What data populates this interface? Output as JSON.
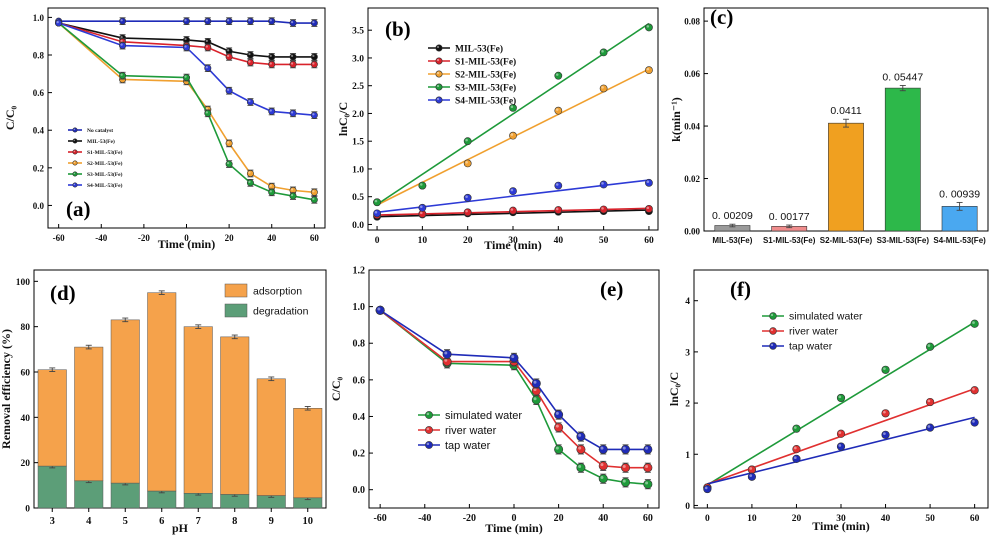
{
  "chart_data": [
    {
      "id": "a",
      "panel_label": "(a)",
      "type": "line",
      "xlabel": "Time (min)",
      "ylabel": "C/C₀",
      "xlim": [
        -65,
        65
      ],
      "ylim": [
        -0.12,
        1.05
      ],
      "xticks": [
        -60,
        -40,
        -20,
        0,
        20,
        40,
        60
      ],
      "yticks": [
        0.0,
        0.2,
        0.4,
        0.6,
        0.8,
        1.0
      ],
      "ytick_labels": [
        "0.0",
        "0.2",
        "0.4",
        "0.6",
        "0.8",
        "1.0"
      ],
      "legend_position": "lower-left",
      "x": [
        -60,
        -30,
        0,
        10,
        20,
        30,
        40,
        50,
        60
      ],
      "series": [
        {
          "name": "No catalyst",
          "color": "#1f2bb8",
          "values": [
            0.98,
            0.98,
            0.98,
            0.98,
            0.98,
            0.98,
            0.98,
            0.97,
            0.97
          ]
        },
        {
          "name": "MIL-53(Fe)",
          "color": "#111111",
          "values": [
            0.97,
            0.89,
            0.88,
            0.87,
            0.82,
            0.8,
            0.79,
            0.79,
            0.79
          ]
        },
        {
          "name": "S1-MIL-53(Fe)",
          "color": "#d9222b",
          "values": [
            0.97,
            0.87,
            0.85,
            0.84,
            0.79,
            0.76,
            0.75,
            0.75,
            0.75
          ]
        },
        {
          "name": "S2-MIL-53(Fe)",
          "color": "#f0a030",
          "values": [
            0.97,
            0.67,
            0.66,
            0.51,
            0.33,
            0.17,
            0.1,
            0.08,
            0.07
          ]
        },
        {
          "name": "S3-MIL-53(Fe)",
          "color": "#1e9a3a",
          "values": [
            0.97,
            0.69,
            0.68,
            0.49,
            0.22,
            0.12,
            0.07,
            0.05,
            0.03
          ]
        },
        {
          "name": "S4-MIL-53(Fe)",
          "color": "#2d3ad6",
          "values": [
            0.97,
            0.85,
            0.84,
            0.73,
            0.61,
            0.55,
            0.5,
            0.49,
            0.48
          ]
        }
      ]
    },
    {
      "id": "b",
      "panel_label": "(b)",
      "type": "scatter",
      "xlabel": "Time (min)",
      "ylabel": "lnC₀/C",
      "xlim": [
        -2,
        62
      ],
      "ylim": [
        -0.1,
        3.9
      ],
      "xticks": [
        0,
        10,
        20,
        30,
        40,
        50,
        60
      ],
      "yticks": [
        0.0,
        0.5,
        1.0,
        1.5,
        2.0,
        2.5,
        3.0,
        3.5
      ],
      "ytick_labels": [
        "0.0",
        "0.5",
        "1.0",
        "1.5",
        "2.0",
        "2.5",
        "3.0",
        "3.5"
      ],
      "legend_position": "top-left",
      "x": [
        0,
        10,
        20,
        30,
        40,
        50,
        60
      ],
      "series": [
        {
          "name": "MIL-53(Fe)",
          "color": "#111111",
          "values": [
            0.14,
            0.18,
            0.2,
            0.22,
            0.23,
            0.24,
            0.24
          ]
        },
        {
          "name": "S1-MIL-53(Fe)",
          "color": "#d9222b",
          "values": [
            0.17,
            0.19,
            0.22,
            0.25,
            0.26,
            0.27,
            0.28
          ]
        },
        {
          "name": "S2-MIL-53(Fe)",
          "color": "#f0a030",
          "values": [
            0.4,
            0.7,
            1.1,
            1.6,
            2.05,
            2.45,
            2.78
          ]
        },
        {
          "name": "S3-MIL-53(Fe)",
          "color": "#1e9a3a",
          "values": [
            0.4,
            0.7,
            1.5,
            2.1,
            2.68,
            3.1,
            3.55
          ]
        },
        {
          "name": "S4-MIL-53(Fe)",
          "color": "#2d3ad6",
          "values": [
            0.2,
            0.3,
            0.48,
            0.6,
            0.7,
            0.72,
            0.75
          ]
        }
      ],
      "fits": [
        {
          "name": "MIL-53(Fe)",
          "y0": 0.14,
          "y60": 0.26
        },
        {
          "name": "S1-MIL-53(Fe)",
          "y0": 0.17,
          "y60": 0.29
        },
        {
          "name": "S2-MIL-53(Fe)",
          "y0": 0.35,
          "y60": 2.8
        },
        {
          "name": "S3-MIL-53(Fe)",
          "y0": 0.36,
          "y60": 3.62
        },
        {
          "name": "S4-MIL-53(Fe)",
          "y0": 0.22,
          "y60": 0.8
        }
      ]
    },
    {
      "id": "c",
      "panel_label": "(c)",
      "type": "bar",
      "xlabel": "",
      "ylabel": "k(min⁻¹)",
      "ylim": [
        0,
        0.085
      ],
      "yticks": [
        0.0,
        0.02,
        0.04,
        0.06,
        0.08
      ],
      "ytick_labels": [
        "0.00",
        "0.02",
        "0.04",
        "0.06",
        "0.08"
      ],
      "categories": [
        "MIL-53(Fe)",
        "S1-MIL-53(Fe)",
        "S2-MIL-53(Fe)",
        "S3-MIL-53(Fe)",
        "S4-MIL-53(Fe)"
      ],
      "values": [
        0.00209,
        0.00177,
        0.0411,
        0.05447,
        0.00939
      ],
      "value_labels": [
        "0. 00209",
        "0. 00177",
        "0.0411",
        "0. 05447",
        "0. 00939"
      ],
      "errors": [
        0.0005,
        0.0005,
        0.0015,
        0.001,
        0.0015
      ],
      "colors": [
        "#9a9a9a",
        "#f08c8c",
        "#f0a020",
        "#2db84a",
        "#4aa8f0"
      ]
    },
    {
      "id": "d",
      "panel_label": "(d)",
      "type": "bar",
      "stacked": true,
      "xlabel": "pH",
      "ylabel": "Removal efficiency (%)",
      "ylim": [
        0,
        105
      ],
      "yticks": [
        0,
        20,
        40,
        60,
        80,
        100
      ],
      "ytick_labels": [
        "0",
        "20",
        "40",
        "60",
        "80",
        "100"
      ],
      "categories": [
        "3",
        "4",
        "5",
        "6",
        "7",
        "8",
        "9",
        "10"
      ],
      "legend_position": "top-right",
      "series": [
        {
          "name": "degradation",
          "color": "#5c9e78",
          "values": [
            18.5,
            12,
            11,
            7.5,
            6.5,
            6,
            5.5,
            4.5
          ]
        },
        {
          "name": "adsorption",
          "color": "#f5a24b",
          "values": [
            42.5,
            59,
            72,
            87.5,
            73.5,
            69.5,
            51.5,
            39.5
          ]
        }
      ],
      "totals": [
        61,
        71,
        83,
        95,
        80,
        75.5,
        57,
        44
      ]
    },
    {
      "id": "e",
      "panel_label": "(e)",
      "type": "line",
      "xlabel": "Time (min)",
      "ylabel": "C/C₀",
      "xlim": [
        -65,
        65
      ],
      "ylim": [
        -0.1,
        1.2
      ],
      "xticks": [
        -60,
        -40,
        -20,
        0,
        20,
        40,
        60
      ],
      "yticks": [
        0.0,
        0.2,
        0.4,
        0.6,
        0.8,
        1.0,
        1.2
      ],
      "ytick_labels": [
        "0.0",
        "0.2",
        "0.4",
        "0.6",
        "0.8",
        "1.0",
        "1.2"
      ],
      "legend_position": "lower-left",
      "x": [
        -60,
        -30,
        0,
        10,
        20,
        30,
        40,
        50,
        60
      ],
      "series": [
        {
          "name": "simulated water",
          "color": "#1e9a3a",
          "values": [
            0.98,
            0.69,
            0.68,
            0.49,
            0.22,
            0.12,
            0.06,
            0.04,
            0.03
          ]
        },
        {
          "name": "river water",
          "color": "#e03030",
          "values": [
            0.98,
            0.7,
            0.7,
            0.54,
            0.34,
            0.22,
            0.13,
            0.12,
            0.12
          ]
        },
        {
          "name": "tap water",
          "color": "#1f2bb8",
          "values": [
            0.98,
            0.74,
            0.72,
            0.58,
            0.41,
            0.29,
            0.22,
            0.22,
            0.22
          ]
        }
      ]
    },
    {
      "id": "f",
      "panel_label": "(f)",
      "type": "scatter",
      "xlabel": "Time (min)",
      "ylabel": "lnC₀/C",
      "xlim": [
        -3,
        63
      ],
      "ylim": [
        -0.05,
        4.6
      ],
      "xticks": [
        0,
        10,
        20,
        30,
        40,
        50,
        60
      ],
      "yticks": [
        0,
        1,
        2,
        3,
        4
      ],
      "ytick_labels": [
        "0",
        "1",
        "2",
        "3",
        "4"
      ],
      "legend_position": "top-left",
      "x": [
        0,
        10,
        20,
        30,
        40,
        50,
        60
      ],
      "series": [
        {
          "name": "simulated water",
          "color": "#1e9a3a",
          "values": [
            0.35,
            0.7,
            1.5,
            2.1,
            2.65,
            3.1,
            3.55
          ]
        },
        {
          "name": "river water",
          "color": "#e03030",
          "values": [
            0.35,
            0.7,
            1.1,
            1.4,
            1.8,
            2.02,
            2.25
          ]
        },
        {
          "name": "tap water",
          "color": "#1f2bb8",
          "values": [
            0.32,
            0.56,
            0.91,
            1.15,
            1.38,
            1.52,
            1.62
          ]
        }
      ],
      "fits": [
        {
          "name": "simulated water",
          "y0": 0.4,
          "y60": 3.58
        },
        {
          "name": "river water",
          "y0": 0.42,
          "y60": 2.28
        },
        {
          "name": "tap water",
          "y0": 0.42,
          "y60": 1.72
        }
      ]
    }
  ]
}
